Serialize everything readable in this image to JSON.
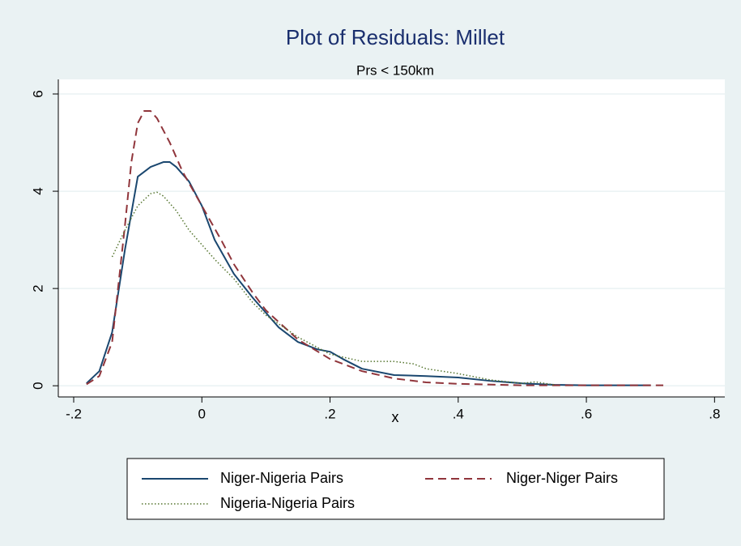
{
  "chart_data": {
    "type": "line",
    "title": "Plot of Residuals: Millet",
    "subtitle": "Prs < 150km",
    "x_label": "x",
    "xlim": [
      -0.224,
      0.816
    ],
    "ylim": [
      -0.23,
      6.3
    ],
    "xticks": [
      {
        "value": -0.2,
        "label": "-.2"
      },
      0,
      {
        "value": 0.2,
        "label": ".2"
      },
      {
        "value": 0.4,
        "label": ".4"
      },
      {
        "value": 0.6,
        "label": ".6"
      },
      {
        "value": 0.8,
        "label": ".8"
      }
    ],
    "yticks": [
      0,
      2,
      4,
      6
    ],
    "grid": true,
    "legend": "bottom",
    "series": [
      {
        "name": "Niger-Nigeria Pairs",
        "color": "#1a476f",
        "dash": "solid",
        "x": [
          -0.18,
          -0.16,
          -0.14,
          -0.12,
          -0.1,
          -0.08,
          -0.06,
          -0.05,
          -0.04,
          -0.02,
          0,
          0.02,
          0.05,
          0.08,
          0.1,
          0.12,
          0.15,
          0.18,
          0.2,
          0.22,
          0.25,
          0.3,
          0.35,
          0.4,
          0.45,
          0.5,
          0.55,
          0.6,
          0.65,
          0.7
        ],
        "values": [
          0.05,
          0.3,
          1.1,
          2.8,
          4.3,
          4.5,
          4.6,
          4.6,
          4.5,
          4.2,
          3.7,
          3.0,
          2.3,
          1.8,
          1.5,
          1.2,
          0.9,
          0.75,
          0.7,
          0.55,
          0.35,
          0.22,
          0.2,
          0.17,
          0.1,
          0.05,
          0.02,
          0.01,
          0.01,
          0.01
        ]
      },
      {
        "name": "Niger-Niger Pairs",
        "color": "#90353b",
        "dash": "dashed",
        "x": [
          -0.18,
          -0.16,
          -0.14,
          -0.12,
          -0.11,
          -0.1,
          -0.09,
          -0.08,
          -0.07,
          -0.05,
          -0.03,
          0,
          0.03,
          0.05,
          0.08,
          0.1,
          0.15,
          0.2,
          0.25,
          0.3,
          0.35,
          0.4,
          0.5,
          0.6,
          0.72
        ],
        "values": [
          0.03,
          0.2,
          0.9,
          3.3,
          4.6,
          5.4,
          5.65,
          5.65,
          5.5,
          5.0,
          4.4,
          3.7,
          3.0,
          2.5,
          1.9,
          1.55,
          0.95,
          0.55,
          0.3,
          0.15,
          0.07,
          0.04,
          0.01,
          0.01,
          0.01
        ]
      },
      {
        "name": "Nigeria-Nigeria Pairs",
        "color": "#55752f",
        "dash": "dotted",
        "x": [
          -0.14,
          -0.12,
          -0.1,
          -0.08,
          -0.07,
          -0.06,
          -0.04,
          -0.02,
          0,
          0.02,
          0.05,
          0.08,
          0.1,
          0.15,
          0.2,
          0.25,
          0.3,
          0.33,
          0.35,
          0.4,
          0.45,
          0.5,
          0.52,
          0.55
        ],
        "values": [
          2.65,
          3.2,
          3.7,
          3.95,
          3.98,
          3.9,
          3.6,
          3.2,
          2.9,
          2.6,
          2.2,
          1.7,
          1.45,
          1.0,
          0.65,
          0.5,
          0.5,
          0.45,
          0.35,
          0.25,
          0.12,
          0.05,
          0.08,
          0.02
        ]
      }
    ]
  }
}
